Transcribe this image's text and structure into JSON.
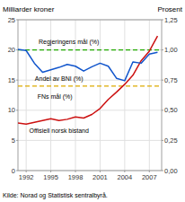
{
  "chart_data": {
    "type": "line",
    "y_label": "Milliarder kroner",
    "y2_label": "Prosent",
    "source": "Kilde: Norad og Statistisk sentralbyrå.",
    "x": [
      1991,
      1992,
      1993,
      1994,
      1995,
      1996,
      1997,
      1998,
      1999,
      2000,
      2001,
      2002,
      2003,
      2004,
      2005,
      2006,
      2007,
      2008
    ],
    "series": [
      {
        "name": "Offisiell norsk bistand",
        "color": "#cc1111",
        "values": [
          7.9,
          7.7,
          8.0,
          8.3,
          8.6,
          8.3,
          8.5,
          8.9,
          8.7,
          9.3,
          10.3,
          11.8,
          13.0,
          14.3,
          15.8,
          18.2,
          19.8,
          22.3
        ]
      },
      {
        "name": "Andel av BNI (%)",
        "color": "#1155cc",
        "values": [
          20.1,
          19.9,
          17.8,
          16.3,
          16.7,
          17.1,
          17.6,
          17.3,
          16.5,
          17.2,
          17.8,
          17.3,
          15.3,
          14.9,
          18.0,
          17.8,
          19.3,
          19.6
        ]
      }
    ],
    "reference_lines": [
      {
        "name": "Regjeringens mål (%)",
        "value": 20.0,
        "color": "#22aa00",
        "line_style": "dashed"
      },
      {
        "name": "FNs mål (%)",
        "value": 14.0,
        "color": "#ddaa00",
        "line_style": "dashed"
      }
    ],
    "xlim": [
      1991.0,
      2008.5
    ],
    "xticks": [
      1992,
      1995,
      1998,
      2001,
      2004,
      2007
    ],
    "ylim": [
      0,
      25
    ],
    "yticks": [
      0,
      5,
      10,
      15,
      20,
      25
    ],
    "y2lim": [
      0.0,
      1.25
    ],
    "y2ticks": [
      {
        "value": 0.0,
        "label": "0,00"
      },
      {
        "value": 0.25,
        "label": "0,25"
      },
      {
        "value": 0.5,
        "label": "0,50"
      },
      {
        "value": 0.75,
        "label": "0,75"
      },
      {
        "value": 1.0,
        "label": "1,00"
      },
      {
        "value": 1.25,
        "label": "1,25"
      }
    ],
    "grid": true
  }
}
